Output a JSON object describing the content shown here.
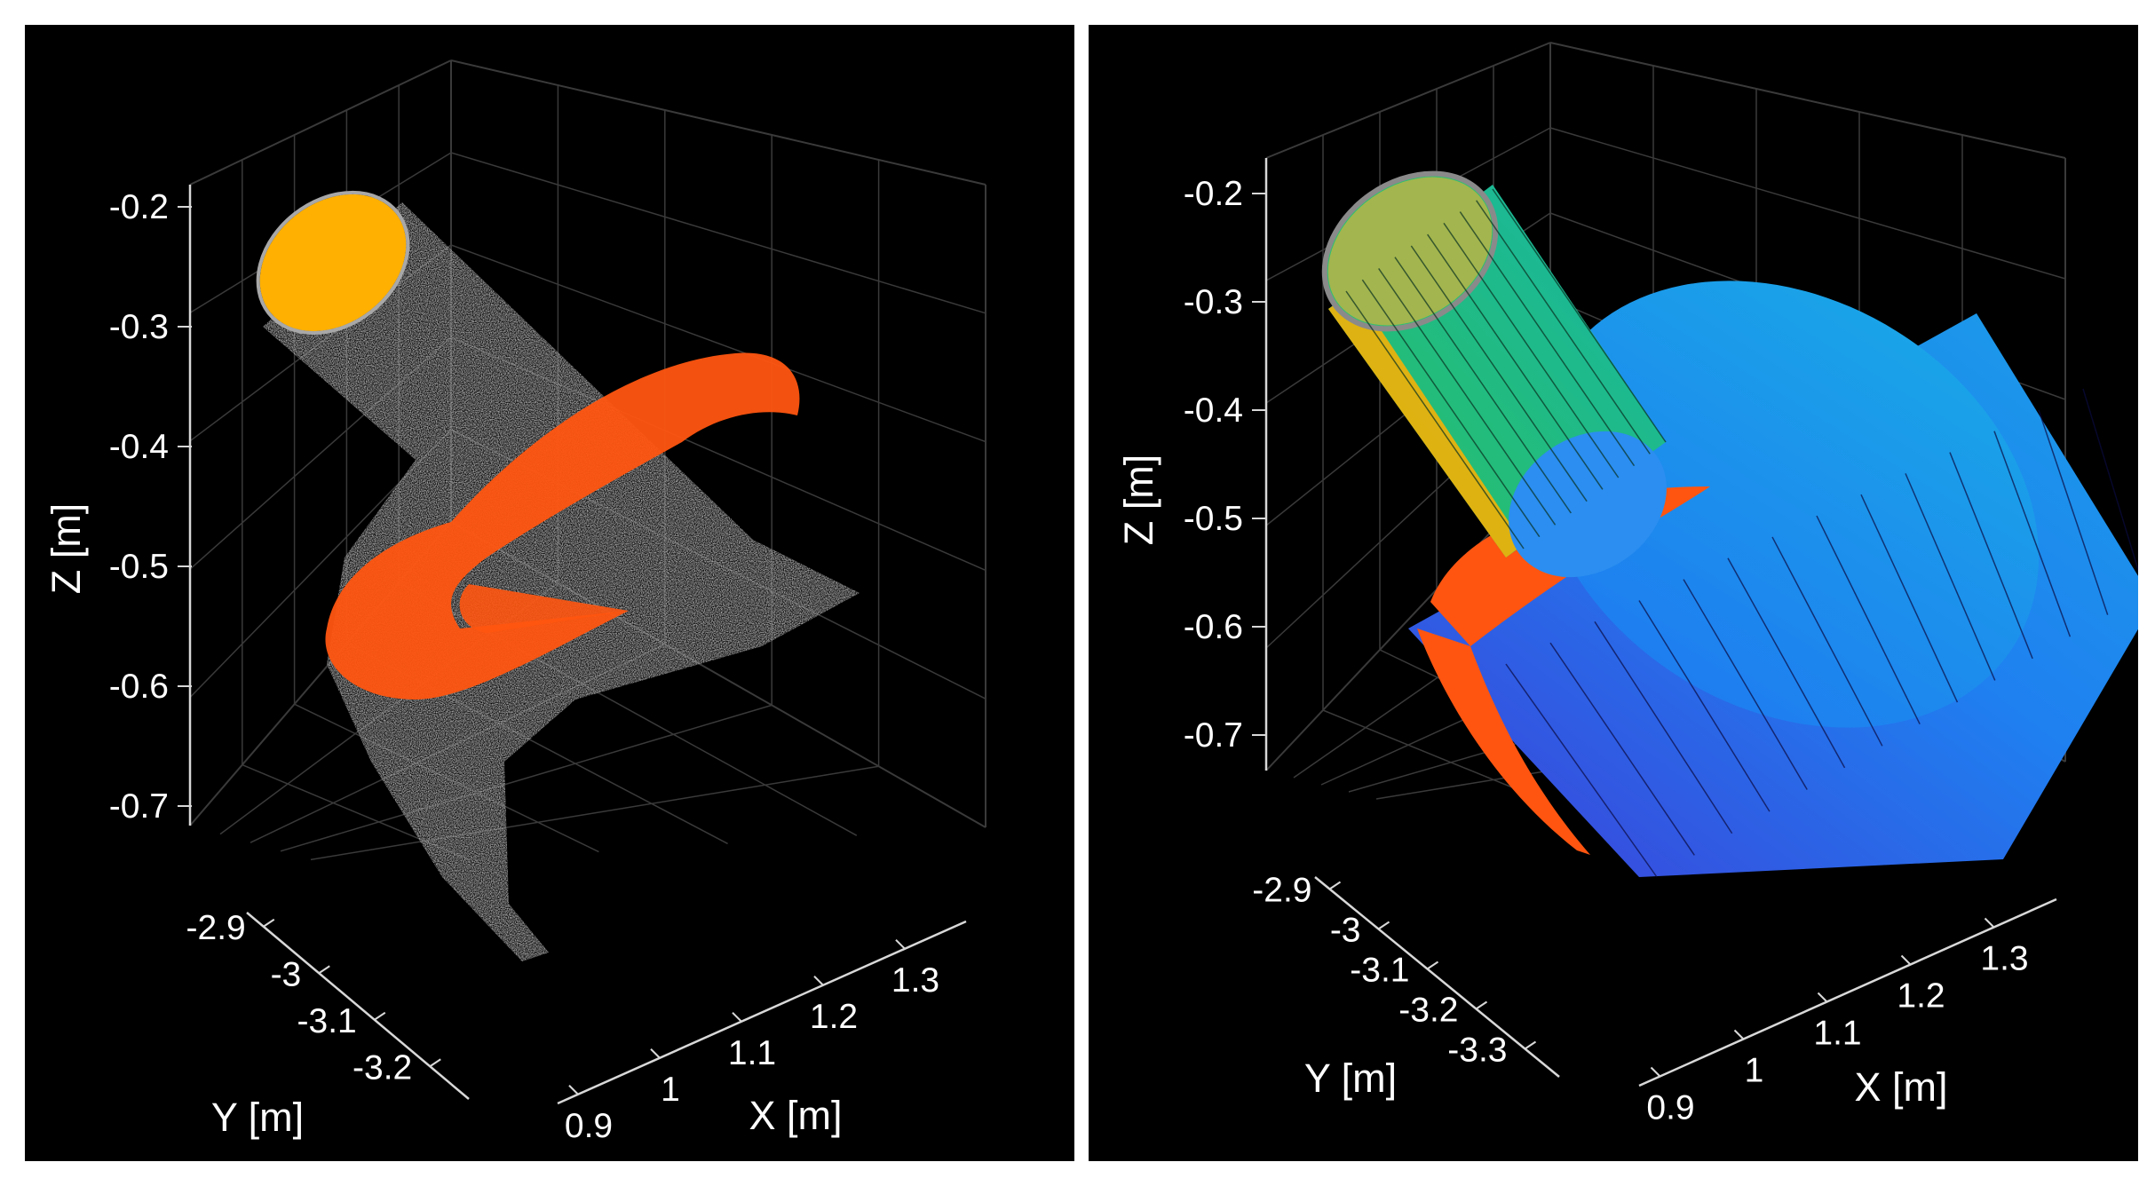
{
  "chart_data": [
    {
      "type": "scatter",
      "subtype": "3d-point-cloud",
      "title": "",
      "xlabel": "X [m]",
      "ylabel": "Y [m]",
      "zlabel": "Z [m]",
      "xticks": [
        "0.9",
        "1",
        "1.1",
        "1.2",
        "1.3"
      ],
      "yticks": [
        "-2.9",
        "-3",
        "-3.1",
        "-3.2"
      ],
      "zticks": [
        "-0.2",
        "-0.3",
        "-0.4",
        "-0.5",
        "-0.6",
        "-0.7"
      ],
      "xlim": [
        0.9,
        1.3
      ],
      "ylim": [
        -3.2,
        -2.9
      ],
      "zlim": [
        -0.7,
        -0.2
      ],
      "grid": true,
      "background": "#000000",
      "colors": {
        "points": "#9a9a9a",
        "cap": "#ffb000",
        "ring": "#ff5510"
      },
      "series": [
        {
          "role": "cylinder-surface-points",
          "color": "#9a9a9a"
        },
        {
          "role": "cylinder-cap-points",
          "color": "#ffb000"
        },
        {
          "role": "disk-points",
          "color": "#ff5510"
        }
      ]
    },
    {
      "type": "scatter",
      "subtype": "3d-point-cloud-with-fitted-cylinders",
      "title": "",
      "xlabel": "X [m]",
      "ylabel": "Y [m]",
      "zlabel": "Z [m]",
      "xticks": [
        "0.9",
        "1",
        "1.1",
        "1.2",
        "1.3"
      ],
      "yticks": [
        "-2.9",
        "-3",
        "-3.1",
        "-3.2",
        "-3.3"
      ],
      "zticks": [
        "-0.2",
        "-0.3",
        "-0.4",
        "-0.5",
        "-0.6",
        "-0.7"
      ],
      "xlim": [
        0.9,
        1.3
      ],
      "ylim": [
        -3.3,
        -2.9
      ],
      "zlim": [
        -0.7,
        -0.2
      ],
      "grid": true,
      "background": "#000000",
      "colors": {
        "small_cylinder": "#22c488",
        "large_cylinder": "#1f86f0",
        "large_cylinder_dark": "#3d3fd8",
        "points": "#9a9a9a",
        "cap": "#ffb000",
        "ring": "#ff5510"
      },
      "series": [
        {
          "role": "fitted-small-cylinder",
          "color": "#22c488"
        },
        {
          "role": "fitted-large-cylinder",
          "color": "#1f86f0"
        },
        {
          "role": "disk-points",
          "color": "#ff5510"
        },
        {
          "role": "cap-points",
          "color": "#ffb000"
        }
      ]
    }
  ]
}
